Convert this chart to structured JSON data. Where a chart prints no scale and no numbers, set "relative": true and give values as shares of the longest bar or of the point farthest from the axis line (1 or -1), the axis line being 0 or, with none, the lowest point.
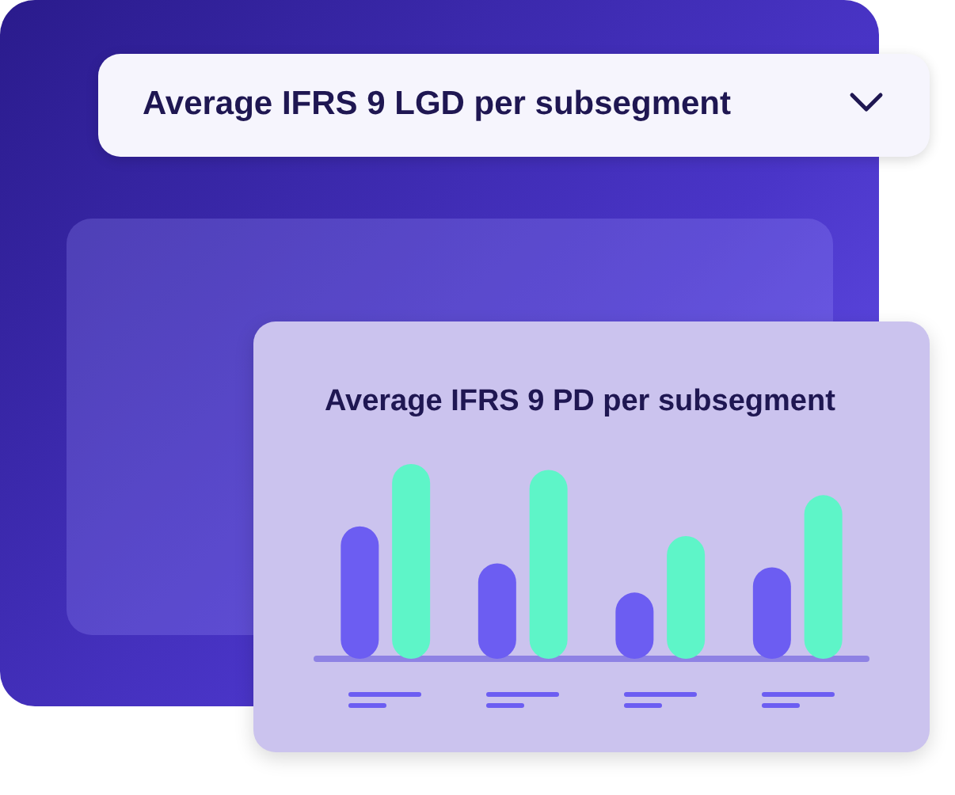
{
  "chart_data": {
    "type": "bar",
    "title": "Average IFRS 9 PD per subsegment",
    "annotations": [
      "Average IFRS 9 LGD per subsegment"
    ],
    "categories": [
      null,
      null,
      null,
      null
    ],
    "relative": true,
    "series": [
      {
        "color": "#6c5df2",
        "values": [
          0.68,
          0.49,
          0.34,
          0.47
        ]
      },
      {
        "color": "#5ef5c8",
        "values": [
          1,
          0.97,
          0.63,
          0.84
        ]
      }
    ]
  }
}
